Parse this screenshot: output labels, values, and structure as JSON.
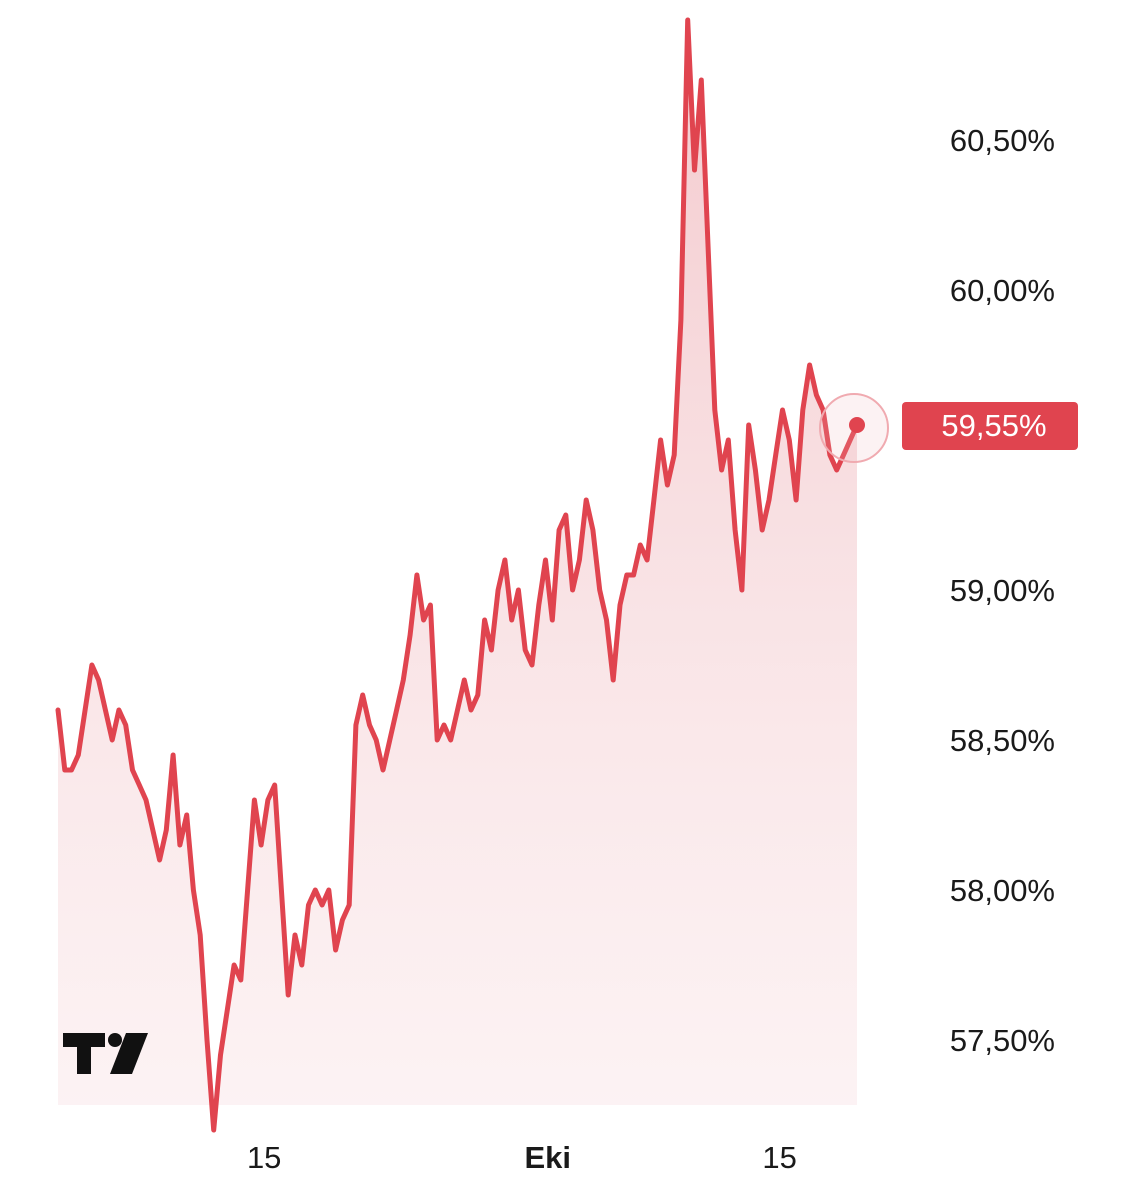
{
  "chart_data": {
    "type": "area",
    "title": "",
    "xlabel": "",
    "ylabel": "",
    "ylim": [
      57.15,
      61.0
    ],
    "y_ticks": [
      "60,50%",
      "60,00%",
      "59,00%",
      "58,50%",
      "58,00%",
      "57,50%"
    ],
    "y_tick_values": [
      60.5,
      60.0,
      59.0,
      58.5,
      58.0,
      57.5
    ],
    "x_ticks": [
      {
        "label": "15",
        "x": 40,
        "bold": false
      },
      {
        "label": "Eki",
        "x": 95,
        "bold": true
      },
      {
        "label": "15",
        "x": 140,
        "bold": false
      }
    ],
    "x_range": [
      0,
      155
    ],
    "last_value": 59.55,
    "last_value_label": "59,55%",
    "line_color": "#e0444f",
    "fill_color": "#f2c2c6",
    "series": [
      {
        "values": [
          58.6,
          58.4,
          58.4,
          58.45,
          58.6,
          58.75,
          58.7,
          58.6,
          58.5,
          58.6,
          58.55,
          58.4,
          58.35,
          58.3,
          58.2,
          58.1,
          58.2,
          58.45,
          58.15,
          58.25,
          58.0,
          57.85,
          57.5,
          57.2,
          57.45,
          57.6,
          57.75,
          57.7,
          58.0,
          58.3,
          58.15,
          58.3,
          58.35,
          58.0,
          57.65,
          57.85,
          57.75,
          57.95,
          58.0,
          57.95,
          58.0,
          57.8,
          57.9,
          57.95,
          58.55,
          58.65,
          58.55,
          58.5,
          58.4,
          58.5,
          58.6,
          58.7,
          58.85,
          59.05,
          58.9,
          58.95,
          58.5,
          58.55,
          58.5,
          58.6,
          58.7,
          58.6,
          58.65,
          58.9,
          58.8,
          59.0,
          59.1,
          58.9,
          59.0,
          58.8,
          58.75,
          58.95,
          59.1,
          58.9,
          59.2,
          59.25,
          59.0,
          59.1,
          59.3,
          59.2,
          59.0,
          58.9,
          58.7,
          58.95,
          59.05,
          59.05,
          59.15,
          59.1,
          59.3,
          59.5,
          59.35,
          59.45,
          59.9,
          60.9,
          60.4,
          60.7,
          60.15,
          59.6,
          59.4,
          59.5,
          59.2,
          59.0,
          59.55,
          59.4,
          59.2,
          59.3,
          59.45,
          59.6,
          59.5,
          59.3,
          59.6,
          59.75,
          59.65,
          59.6,
          59.45,
          59.4,
          59.45,
          59.5,
          59.55
        ]
      }
    ]
  },
  "watermark": {
    "name": "TradingView",
    "text": "TV"
  }
}
